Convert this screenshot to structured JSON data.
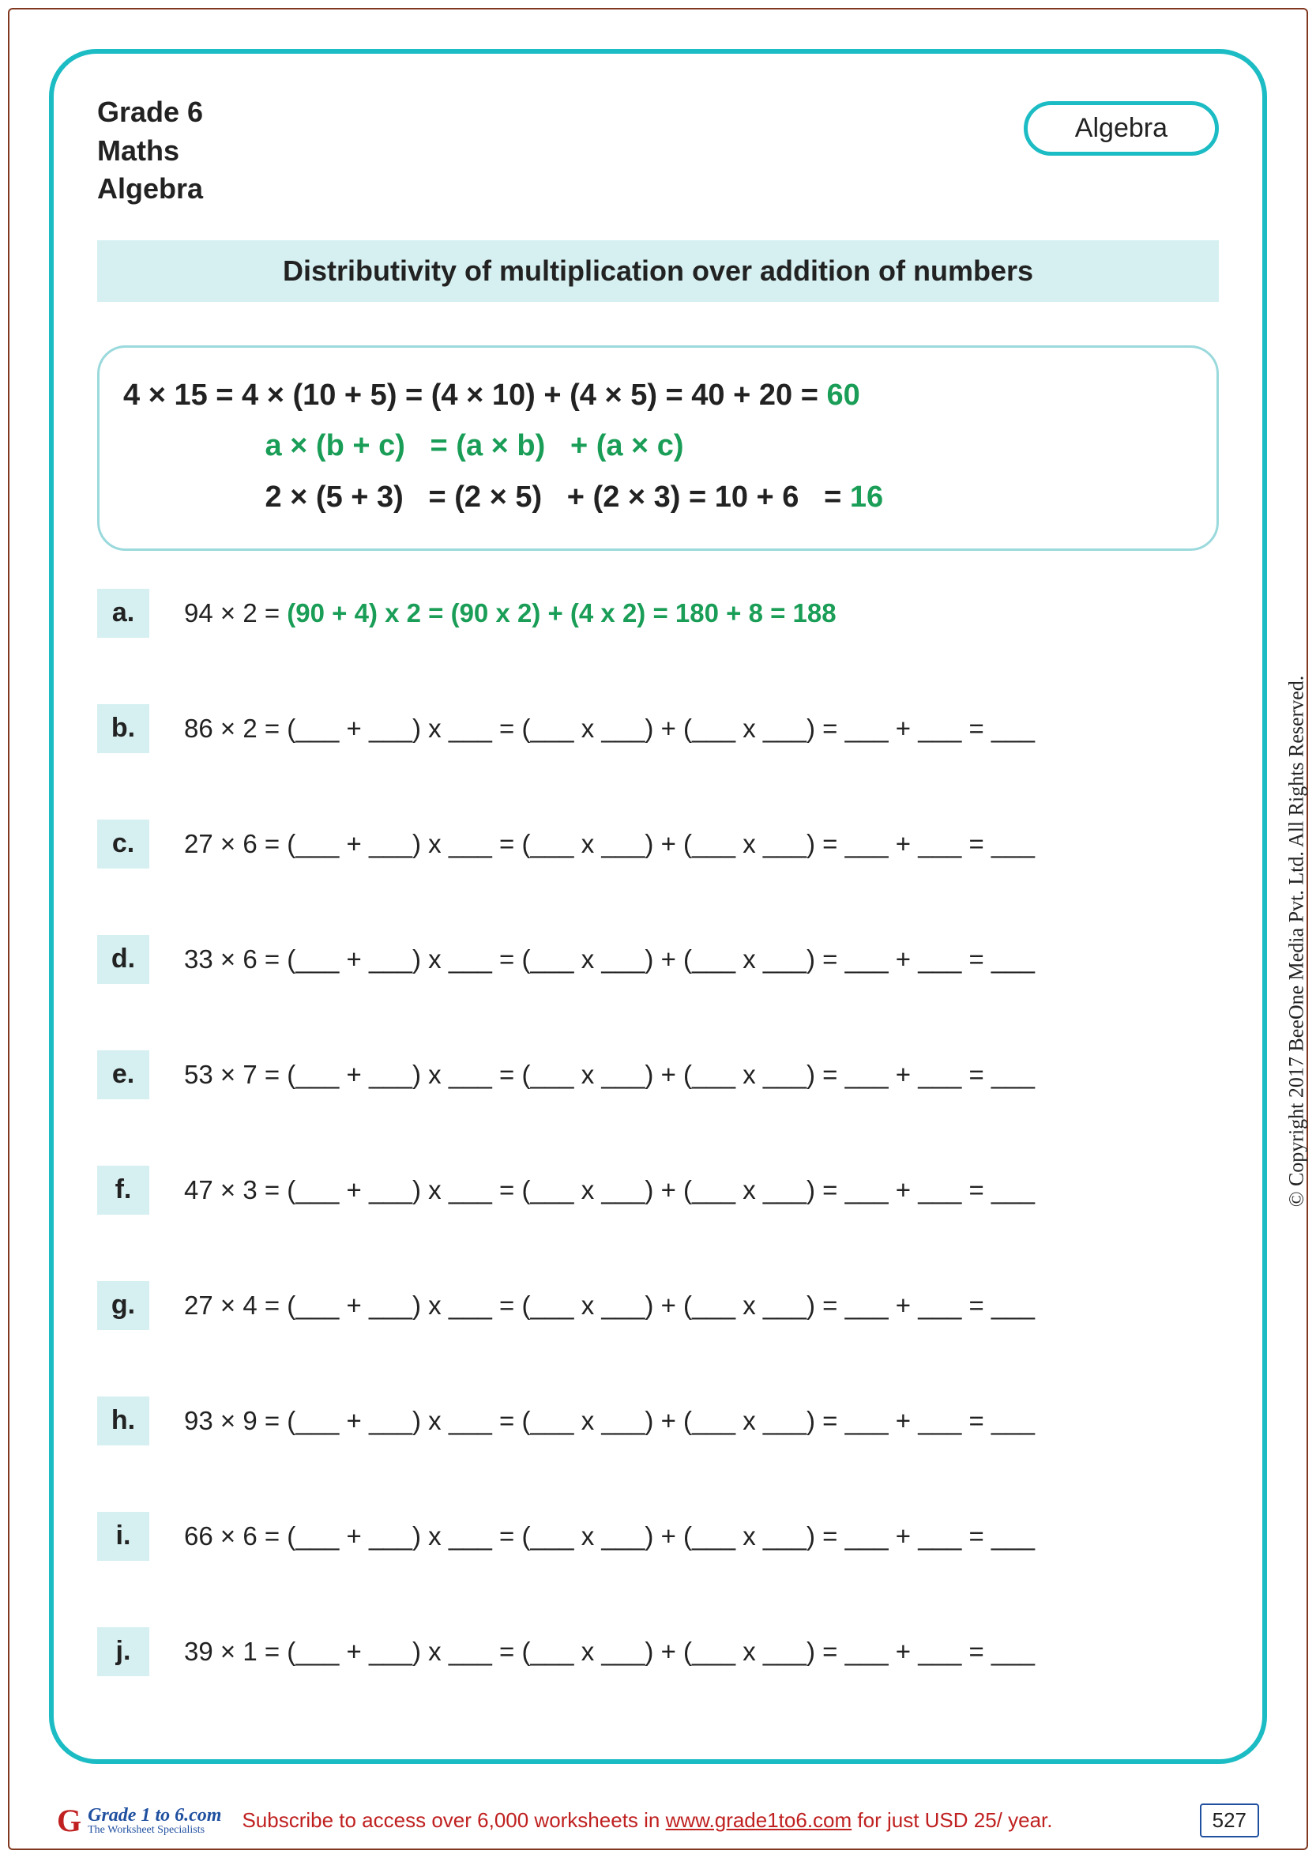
{
  "header": {
    "grade": "Grade 6",
    "subject": "Maths",
    "topic": "Algebra",
    "pill": "Algebra"
  },
  "title": "Distributivity of multiplication over addition of numbers",
  "example": {
    "line1a": "4 × 15 = 4 × (10 + 5) = (4 × 10) + (4 × 5) = 40 + 20 = ",
    "line1b": "60",
    "line2pad": "                 ",
    "line2": "a × (b + c)   = (a × b)   + (a × c)",
    "line3pad": "                 ",
    "line3a": "2 × (5 + 3)   = (2 × 5)   + (2 × 3) = 10 + 6   = ",
    "line3b": "16"
  },
  "problems": [
    {
      "letter": "a.",
      "lhs": "94 × 2 = ",
      "rhs": "(90 + 4) x 2 = (90 x 2) + (4 x 2) = 180 + 8 = 188",
      "answered": true
    },
    {
      "letter": "b.",
      "lhs": "86 × 2 = ",
      "rhs": "(___ + ___) x ___ = (___ x ___) + (___ x ___) = ___ + ___ = ___",
      "answered": false
    },
    {
      "letter": "c.",
      "lhs": "27 × 6 = ",
      "rhs": "(___ + ___) x ___ = (___ x ___) + (___ x ___) = ___ + ___ = ___",
      "answered": false
    },
    {
      "letter": "d.",
      "lhs": "33 × 6 = ",
      "rhs": "(___ + ___) x ___ = (___ x ___) + (___ x ___) = ___ + ___ = ___",
      "answered": false
    },
    {
      "letter": "e.",
      "lhs": "53 × 7 = ",
      "rhs": "(___ + ___) x ___ = (___ x ___) + (___ x ___) = ___ + ___ = ___",
      "answered": false
    },
    {
      "letter": "f.",
      "lhs": "47 × 3 = ",
      "rhs": "(___ + ___) x ___ = (___ x ___) + (___ x ___) = ___ + ___ = ___",
      "answered": false
    },
    {
      "letter": "g.",
      "lhs": "27 × 4 = ",
      "rhs": "(___ + ___) x ___ = (___ x ___) + (___ x ___) = ___ + ___ = ___",
      "answered": false
    },
    {
      "letter": "h.",
      "lhs": "93 × 9 = ",
      "rhs": "(___ + ___) x ___ = (___ x ___) + (___ x ___) = ___ + ___ = ___",
      "answered": false
    },
    {
      "letter": "i.",
      "lhs": "66 × 6 = ",
      "rhs": "(___ + ___) x ___ = (___ x ___) + (___ x ___) = ___ + ___ = ___",
      "answered": false
    },
    {
      "letter": "j.",
      "lhs": "39 × 1 = ",
      "rhs": "(___ + ___) x ___ = (___ x ___) + (___ x ___) = ___ + ___ = ___",
      "answered": false
    }
  ],
  "footer": {
    "logo_g": "G",
    "logo_line1": "Grade 1 to 6.com",
    "logo_line2": "The Worksheet Specialists",
    "subscribe_a": "Subscribe to access over 6,000 worksheets in ",
    "subscribe_link": "www.grade1to6.com",
    "subscribe_b": " for just USD 25/ year.",
    "page_number": "527"
  },
  "side_copyright": "© Copyright 2017 BeeOne Media Pvt. Ltd. All Rights Reserved.",
  "colors": {
    "teal": "#1cbcc4",
    "teal_light": "#d6f0f1",
    "green": "#1a9e57",
    "border_brown": "#803820",
    "red": "#c02020",
    "blue": "#2050a0"
  }
}
